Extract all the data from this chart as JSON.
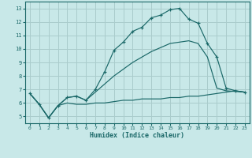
{
  "background_color": "#c8e8e8",
  "grid_color": "#aacccc",
  "line_color": "#1a6868",
  "xlabel": "Humidex (Indice chaleur)",
  "xlim": [
    -0.5,
    23.5
  ],
  "ylim": [
    4.5,
    13.5
  ],
  "yticks": [
    5,
    6,
    7,
    8,
    9,
    10,
    11,
    12,
    13
  ],
  "xticks": [
    0,
    1,
    2,
    3,
    4,
    5,
    6,
    7,
    8,
    9,
    10,
    11,
    12,
    13,
    14,
    15,
    16,
    17,
    18,
    19,
    20,
    21,
    22,
    23
  ],
  "curve_upper_x": [
    0,
    1,
    2,
    3,
    4,
    5,
    6,
    7,
    8,
    9,
    10,
    11,
    12,
    13,
    14,
    15,
    16,
    17,
    18,
    19,
    20,
    21,
    22,
    23
  ],
  "curve_upper_y": [
    6.7,
    5.9,
    4.9,
    5.8,
    6.4,
    6.5,
    6.2,
    7.0,
    8.3,
    9.9,
    10.5,
    11.3,
    11.6,
    12.3,
    12.5,
    12.9,
    13.0,
    12.2,
    11.9,
    10.4,
    9.4,
    7.1,
    6.9,
    6.8
  ],
  "curve_flat_x": [
    0,
    1,
    2,
    3,
    4,
    5,
    6,
    7,
    8,
    9,
    10,
    11,
    12,
    13,
    14,
    15,
    16,
    17,
    18,
    19,
    20,
    21,
    22,
    23
  ],
  "curve_flat_y": [
    6.7,
    5.9,
    4.9,
    5.8,
    6.0,
    5.9,
    5.9,
    6.0,
    6.0,
    6.1,
    6.2,
    6.2,
    6.3,
    6.3,
    6.3,
    6.4,
    6.4,
    6.5,
    6.5,
    6.6,
    6.7,
    6.8,
    6.9,
    6.8
  ],
  "curve_diag_x": [
    0,
    1,
    2,
    3,
    4,
    5,
    6,
    7,
    8,
    9,
    10,
    11,
    12,
    13,
    14,
    15,
    16,
    17,
    18,
    19,
    20,
    21,
    22,
    23
  ],
  "curve_diag_y": [
    6.7,
    5.9,
    4.9,
    5.8,
    6.4,
    6.5,
    6.2,
    6.8,
    7.4,
    8.0,
    8.5,
    9.0,
    9.4,
    9.8,
    10.1,
    10.4,
    10.5,
    10.6,
    10.4,
    9.4,
    7.1,
    6.9,
    6.85,
    6.8
  ]
}
